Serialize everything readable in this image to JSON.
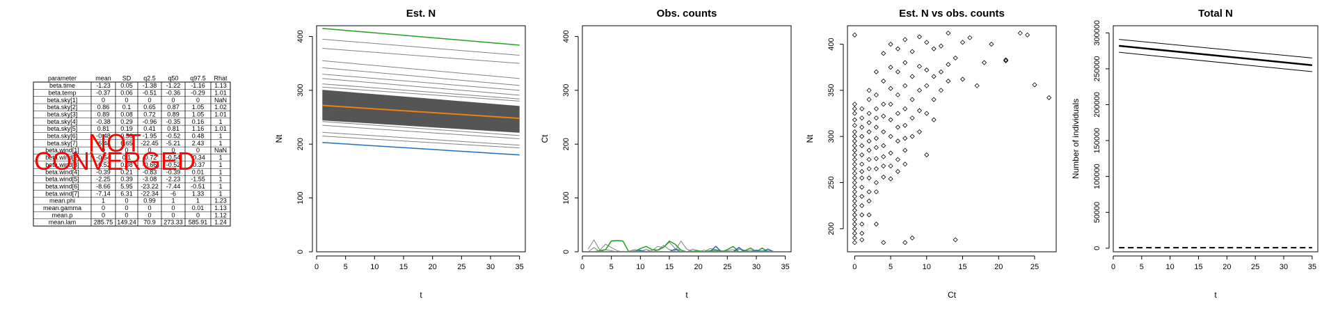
{
  "summary_table": {
    "headers": [
      "parameter",
      "mean",
      "SD",
      "q2.5",
      "q50",
      "q97.5",
      "Rhat"
    ],
    "rows": [
      [
        "beta.time",
        "-1.23",
        "0.05",
        "-1.38",
        "-1.22",
        "-1.16",
        "1.13"
      ],
      [
        "beta.temp",
        "-0.37",
        "0.06",
        "-0.51",
        "-0.36",
        "-0.29",
        "1.01"
      ],
      [
        "beta.sky[1]",
        "0",
        "0",
        "0",
        "0",
        "0",
        "NaN"
      ],
      [
        "beta.sky[2]",
        "0.86",
        "0.1",
        "0.65",
        "0.87",
        "1.05",
        "1.02"
      ],
      [
        "beta.sky[3]",
        "0.89",
        "0.08",
        "0.72",
        "0.89",
        "1.05",
        "1.01"
      ],
      [
        "beta.sky[4]",
        "-0.38",
        "0.29",
        "-0.96",
        "-0.35",
        "0.16",
        "1"
      ],
      [
        "beta.sky[5]",
        "0.81",
        "0.19",
        "0.41",
        "0.81",
        "1.16",
        "1.01"
      ],
      [
        "beta.sky[6]",
        "-0.48",
        "0.56",
        "-1.95",
        "-0.52",
        "0.48",
        "1"
      ],
      [
        "beta.sky[7]",
        "-6.44",
        "6.65",
        "-22.45",
        "-5.21",
        "2.43",
        "1"
      ],
      [
        "beta.wind[1]",
        "0",
        "0",
        "0",
        "0",
        "0",
        "NaN"
      ],
      [
        "beta.wind[2]",
        "-0.54",
        "0.1",
        "-0.72",
        "-0.54",
        "-0.34",
        "1"
      ],
      [
        "beta.wind[3]",
        "-0.52",
        "0.08",
        "-0.66",
        "-0.52",
        "-0.37",
        "1"
      ],
      [
        "beta.wind[4]",
        "-0.39",
        "0.21",
        "-0.83",
        "-0.39",
        "0.01",
        "1"
      ],
      [
        "beta.wind[5]",
        "-2.25",
        "0.39",
        "-3.08",
        "-2.23",
        "-1.55",
        "1"
      ],
      [
        "beta.wind[6]",
        "-8.66",
        "5.95",
        "-23.22",
        "-7.44",
        "-0.51",
        "1"
      ],
      [
        "beta.wind[7]",
        "-7.14",
        "6.31",
        "-22.34",
        "-6",
        "1.33",
        "1"
      ],
      [
        "mean.phi",
        "1",
        "0",
        "0.99",
        "1",
        "1",
        "1.23"
      ],
      [
        "mean.gamma",
        "0",
        "0",
        "0",
        "0",
        "0.01",
        "1.13"
      ],
      [
        "mean.p",
        "0",
        "0",
        "0",
        "0",
        "0",
        "1.12"
      ],
      [
        "mean.lam",
        "285.75",
        "149.24",
        "70.9",
        "273.33",
        "585.91",
        "1.24"
      ]
    ],
    "overlay_lines": [
      "NOT",
      "CONVERGED"
    ],
    "overlay_color": "#ff0000"
  },
  "chart_data": [
    {
      "type": "line",
      "title": "Est. N",
      "xlabel": "t",
      "ylabel": "Nt",
      "xlim": [
        0,
        36
      ],
      "ylim": [
        0,
        420
      ],
      "xticks": [
        0,
        5,
        10,
        15,
        20,
        25,
        30,
        35
      ],
      "yticks": [
        0,
        100,
        200,
        300,
        400
      ],
      "x": [
        1,
        35
      ],
      "series": [
        {
          "color": "#22a022",
          "width": 1.5,
          "values": [
            415,
            384
          ]
        },
        {
          "color": "#808080",
          "width": 1,
          "values": [
            395,
            365
          ]
        },
        {
          "color": "#808080",
          "width": 1,
          "values": [
            378,
            350
          ]
        },
        {
          "color": "#808080",
          "width": 1,
          "values": [
            355,
            322
          ]
        },
        {
          "color": "#808080",
          "width": 1,
          "values": [
            342,
            309
          ]
        },
        {
          "color": "#808080",
          "width": 1,
          "values": [
            330,
            300
          ]
        },
        {
          "color": "#808080",
          "width": 1,
          "values": [
            322,
            291
          ]
        },
        {
          "color": "#808080",
          "width": 1,
          "values": [
            312,
            284
          ]
        },
        {
          "color": "#808080",
          "width": 1,
          "values": [
            306,
            280
          ]
        },
        {
          "color": "#808080",
          "width": 1,
          "values": [
            242,
            216
          ]
        },
        {
          "color": "#808080",
          "width": 1,
          "values": [
            235,
            210
          ]
        },
        {
          "color": "#808080",
          "width": 1,
          "values": [
            222,
            198
          ]
        },
        {
          "color": "#808080",
          "width": 1,
          "values": [
            215,
            193
          ]
        },
        {
          "color": "#f07f10",
          "width": 2,
          "values": [
            272,
            248
          ]
        },
        {
          "color": "#1f6fb4",
          "width": 1.5,
          "values": [
            203,
            180
          ]
        }
      ],
      "band": {
        "color": "#555555",
        "lower": [
          245,
          222
        ],
        "upper": [
          300,
          270
        ]
      }
    },
    {
      "type": "line",
      "title": "Obs. counts",
      "xlabel": "t",
      "ylabel": "Ct",
      "xlim": [
        0,
        36
      ],
      "ylim": [
        0,
        420
      ],
      "xticks": [
        0,
        5,
        10,
        15,
        20,
        25,
        30,
        35
      ],
      "yticks": [
        0,
        100,
        200,
        300,
        400
      ],
      "x": [
        1,
        2,
        3,
        4,
        5,
        6,
        7,
        8,
        9,
        10,
        11,
        12,
        13,
        14,
        15,
        16,
        17,
        18,
        19,
        20,
        21,
        22,
        23,
        24,
        25,
        26,
        27,
        28,
        29,
        30,
        31,
        32,
        33,
        34,
        35
      ],
      "series": [
        {
          "color": "#808080",
          "width": 1,
          "values": [
            5,
            22,
            3,
            14,
            8,
            2,
            0,
            1,
            4,
            3,
            1,
            2,
            10,
            8,
            18,
            6,
            3,
            0,
            5,
            2,
            0,
            6,
            4,
            2,
            1,
            0,
            5,
            3,
            0,
            1,
            2,
            0,
            0,
            0,
            0
          ]
        },
        {
          "color": "#808080",
          "width": 1,
          "values": [
            0,
            8,
            0,
            4,
            2,
            0,
            1,
            0,
            2,
            0,
            5,
            0,
            3,
            12,
            4,
            2,
            20,
            5,
            1,
            0,
            3,
            0,
            1,
            0,
            2,
            4,
            0,
            1,
            3,
            0,
            0,
            2,
            0,
            0,
            0
          ]
        },
        {
          "color": "#22a022",
          "width": 1.5,
          "values": [
            0,
            0,
            2,
            4,
            20,
            21,
            20,
            0,
            0,
            6,
            10,
            4,
            3,
            8,
            20,
            14,
            3,
            0,
            1,
            2,
            0,
            2,
            3,
            0,
            4,
            10,
            0,
            2,
            7,
            0,
            7,
            0,
            0,
            0,
            0
          ]
        },
        {
          "color": "#1f6fb4",
          "width": 1.5,
          "values": [
            0,
            0,
            0,
            0,
            0,
            0,
            0,
            0,
            0,
            2,
            0,
            0,
            0,
            0,
            0,
            5,
            0,
            0,
            0,
            0,
            0,
            0,
            10,
            0,
            0,
            0,
            8,
            0,
            0,
            3,
            0,
            5,
            0,
            0,
            0
          ]
        },
        {
          "color": "#f07f10",
          "width": 2,
          "values": [
            0,
            0,
            0,
            0,
            0,
            0,
            0,
            0,
            0,
            0,
            0,
            0,
            0,
            0,
            0,
            0,
            0,
            0,
            0,
            0,
            0,
            0,
            0,
            0,
            0,
            0,
            0,
            0,
            0,
            0,
            0,
            0,
            0,
            0,
            0
          ]
        }
      ]
    },
    {
      "type": "scatter",
      "title": "Est. N vs obs. counts",
      "xlabel": "Ct",
      "ylabel": "Nt",
      "xlim": [
        -1,
        28
      ],
      "ylim": [
        175,
        420
      ],
      "xticks": [
        0,
        5,
        10,
        15,
        20,
        25
      ],
      "yticks": [
        200,
        250,
        300,
        350,
        400
      ],
      "points": [
        [
          0,
          410
        ],
        [
          0,
          335
        ],
        [
          0,
          330
        ],
        [
          0,
          325
        ],
        [
          0,
          318
        ],
        [
          0,
          312
        ],
        [
          0,
          305
        ],
        [
          0,
          300
        ],
        [
          0,
          295
        ],
        [
          0,
          290
        ],
        [
          0,
          285
        ],
        [
          0,
          280
        ],
        [
          0,
          275
        ],
        [
          0,
          270
        ],
        [
          0,
          265
        ],
        [
          0,
          260
        ],
        [
          0,
          255
        ],
        [
          0,
          250
        ],
        [
          0,
          245
        ],
        [
          0,
          240
        ],
        [
          0,
          235
        ],
        [
          0,
          230
        ],
        [
          0,
          225
        ],
        [
          0,
          220
        ],
        [
          0,
          215
        ],
        [
          0,
          210
        ],
        [
          0,
          205
        ],
        [
          0,
          200
        ],
        [
          0,
          195
        ],
        [
          0,
          190
        ],
        [
          0,
          185
        ],
        [
          1,
          330
        ],
        [
          1,
          320
        ],
        [
          1,
          310
        ],
        [
          1,
          300
        ],
        [
          1,
          290
        ],
        [
          1,
          280
        ],
        [
          1,
          270
        ],
        [
          1,
          262
        ],
        [
          1,
          255
        ],
        [
          1,
          245
        ],
        [
          1,
          235
        ],
        [
          1,
          225
        ],
        [
          1,
          215
        ],
        [
          1,
          205
        ],
        [
          1,
          195
        ],
        [
          1,
          188
        ],
        [
          2,
          350
        ],
        [
          2,
          340
        ],
        [
          2,
          325
        ],
        [
          2,
          315
        ],
        [
          2,
          305
        ],
        [
          2,
          295
        ],
        [
          2,
          285
        ],
        [
          2,
          275
        ],
        [
          2,
          265
        ],
        [
          2,
          255
        ],
        [
          2,
          240
        ],
        [
          2,
          230
        ],
        [
          2,
          215
        ],
        [
          3,
          370
        ],
        [
          3,
          345
        ],
        [
          3,
          330
        ],
        [
          3,
          320
        ],
        [
          3,
          310
        ],
        [
          3,
          298
        ],
        [
          3,
          288
        ],
        [
          3,
          276
        ],
        [
          3,
          265
        ],
        [
          3,
          250
        ],
        [
          3,
          240
        ],
        [
          3,
          205
        ],
        [
          4,
          390
        ],
        [
          4,
          360
        ],
        [
          4,
          335
        ],
        [
          4,
          322
        ],
        [
          4,
          305
        ],
        [
          4,
          290
        ],
        [
          4,
          278
        ],
        [
          4,
          268
        ],
        [
          4,
          256
        ],
        [
          4,
          185
        ],
        [
          5,
          400
        ],
        [
          5,
          375
        ],
        [
          5,
          352
        ],
        [
          5,
          335
        ],
        [
          5,
          318
        ],
        [
          5,
          300
        ],
        [
          5,
          282
        ],
        [
          5,
          268
        ],
        [
          5,
          254
        ],
        [
          6,
          395
        ],
        [
          6,
          370
        ],
        [
          6,
          345
        ],
        [
          6,
          325
        ],
        [
          6,
          310
        ],
        [
          6,
          295
        ],
        [
          6,
          275
        ],
        [
          6,
          262
        ],
        [
          7,
          405
        ],
        [
          7,
          380
        ],
        [
          7,
          355
        ],
        [
          7,
          330
        ],
        [
          7,
          312
        ],
        [
          7,
          298
        ],
        [
          7,
          285
        ],
        [
          7,
          270
        ],
        [
          7,
          185
        ],
        [
          8,
          392
        ],
        [
          8,
          365
        ],
        [
          8,
          340
        ],
        [
          8,
          320
        ],
        [
          8,
          300
        ],
        [
          8,
          190
        ],
        [
          9,
          408
        ],
        [
          9,
          376
        ],
        [
          9,
          350
        ],
        [
          9,
          328
        ],
        [
          9,
          305
        ],
        [
          10,
          402
        ],
        [
          10,
          372
        ],
        [
          10,
          355
        ],
        [
          10,
          325
        ],
        [
          10,
          280
        ],
        [
          11,
          395
        ],
        [
          11,
          365
        ],
        [
          11,
          340
        ],
        [
          11,
          318
        ],
        [
          12,
          398
        ],
        [
          12,
          370
        ],
        [
          12,
          350
        ],
        [
          13,
          412
        ],
        [
          13,
          378
        ],
        [
          13,
          360
        ],
        [
          14,
          385
        ],
        [
          14,
          188
        ],
        [
          15,
          402
        ],
        [
          15,
          362
        ],
        [
          16,
          407
        ],
        [
          17,
          355
        ],
        [
          18,
          380
        ],
        [
          19,
          400
        ],
        [
          21,
          383
        ],
        [
          21,
          382
        ],
        [
          23,
          412
        ],
        [
          24,
          410
        ],
        [
          25,
          356
        ],
        [
          27,
          342
        ]
      ]
    },
    {
      "type": "line",
      "title": "Total N",
      "xlabel": "t",
      "ylabel": "Number of individuals",
      "xlim": [
        0,
        36
      ],
      "ylim": [
        -5000,
        310000
      ],
      "xticks": [
        0,
        5,
        10,
        15,
        20,
        25,
        30,
        35
      ],
      "yticks": [
        0,
        50000,
        100000,
        150000,
        200000,
        250000,
        300000
      ],
      "ytick_labels": [
        "0",
        "50000",
        "100000",
        "150000",
        "200000",
        "250000",
        "300000"
      ],
      "x": [
        1,
        35
      ],
      "series": [
        {
          "color": "#000000",
          "width": 1,
          "values": [
            291000,
            265000
          ]
        },
        {
          "color": "#000000",
          "width": 2.5,
          "values": [
            282000,
            255000
          ]
        },
        {
          "color": "#000000",
          "width": 1,
          "values": [
            273000,
            246000
          ]
        },
        {
          "color": "#000000",
          "width": 2,
          "dash": "8,5",
          "values": [
            700,
            700
          ]
        }
      ]
    }
  ]
}
